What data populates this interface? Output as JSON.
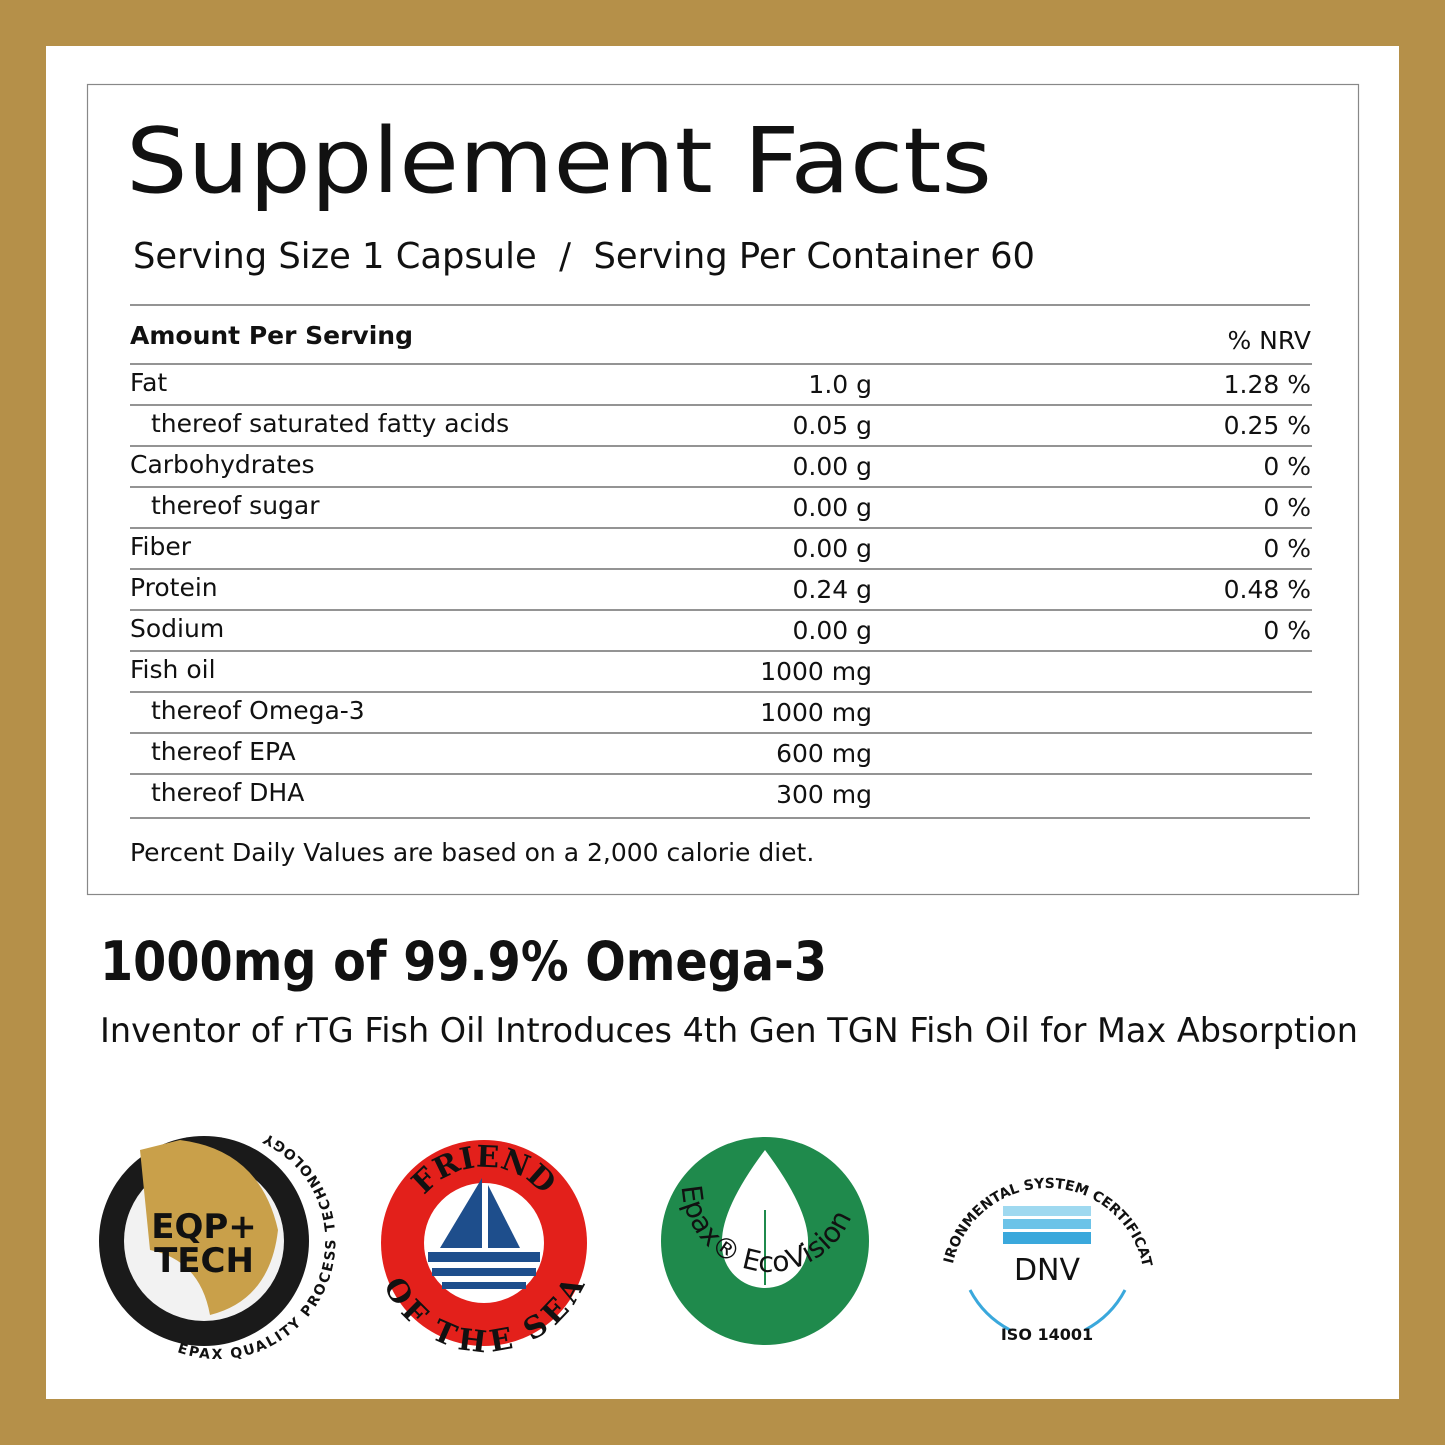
{
  "header": {
    "title": "Supplement Facts",
    "serving": "Serving Size 1 Capsule  /  Serving Per Container 60"
  },
  "table": {
    "columns": [
      "Amount Per Serving",
      "% NRV"
    ],
    "rows": [
      [
        "Fat",
        "1.0 g",
        "1.28 %"
      ],
      [
        "thereof saturated fatty acids",
        "0.05 g",
        "0.25 %"
      ],
      [
        "Carbohydrates",
        "0.00 g",
        "0 %"
      ],
      [
        "thereof sugar",
        "0.00 g",
        "0 %"
      ],
      [
        "Fiber",
        "0.00 g",
        "0 %"
      ],
      [
        "Protein",
        "0.24 g",
        "0.48 %"
      ],
      [
        "Sodium",
        "0.00 g",
        "0 %"
      ],
      [
        "Fish oil",
        "1000 mg"
      ],
      [
        "thereof Omega-3",
        "1000 mg"
      ],
      [
        "thereof EPA",
        "600 mg"
      ],
      [
        "thereof DHA",
        "300 mg"
      ]
    ],
    "footnote": "Percent Daily Values are based on a 2,000 calorie diet."
  },
  "headline": "1000mg of 99.9% Omega-3",
  "tagline": "Inventor of rTG Fish Oil Introduces 4th Gen TGN Fish Oil for Max Absorption",
  "badges": {
    "epax": {
      "ring": "EPAX QUALITY PROCESS TECHNOLOGY",
      "lines": [
        "EQP+",
        "TECH"
      ]
    },
    "friend": {
      "top": "FRIEND",
      "bottom": "OF THE SEA"
    },
    "ecovision": {
      "ring": "Epax® EcoVision"
    },
    "dnv": {
      "ring": "ENVIRONMENTAL SYSTEM CERTIFICATION",
      "mark": "DNV",
      "standard": "ISO 14001"
    }
  }
}
